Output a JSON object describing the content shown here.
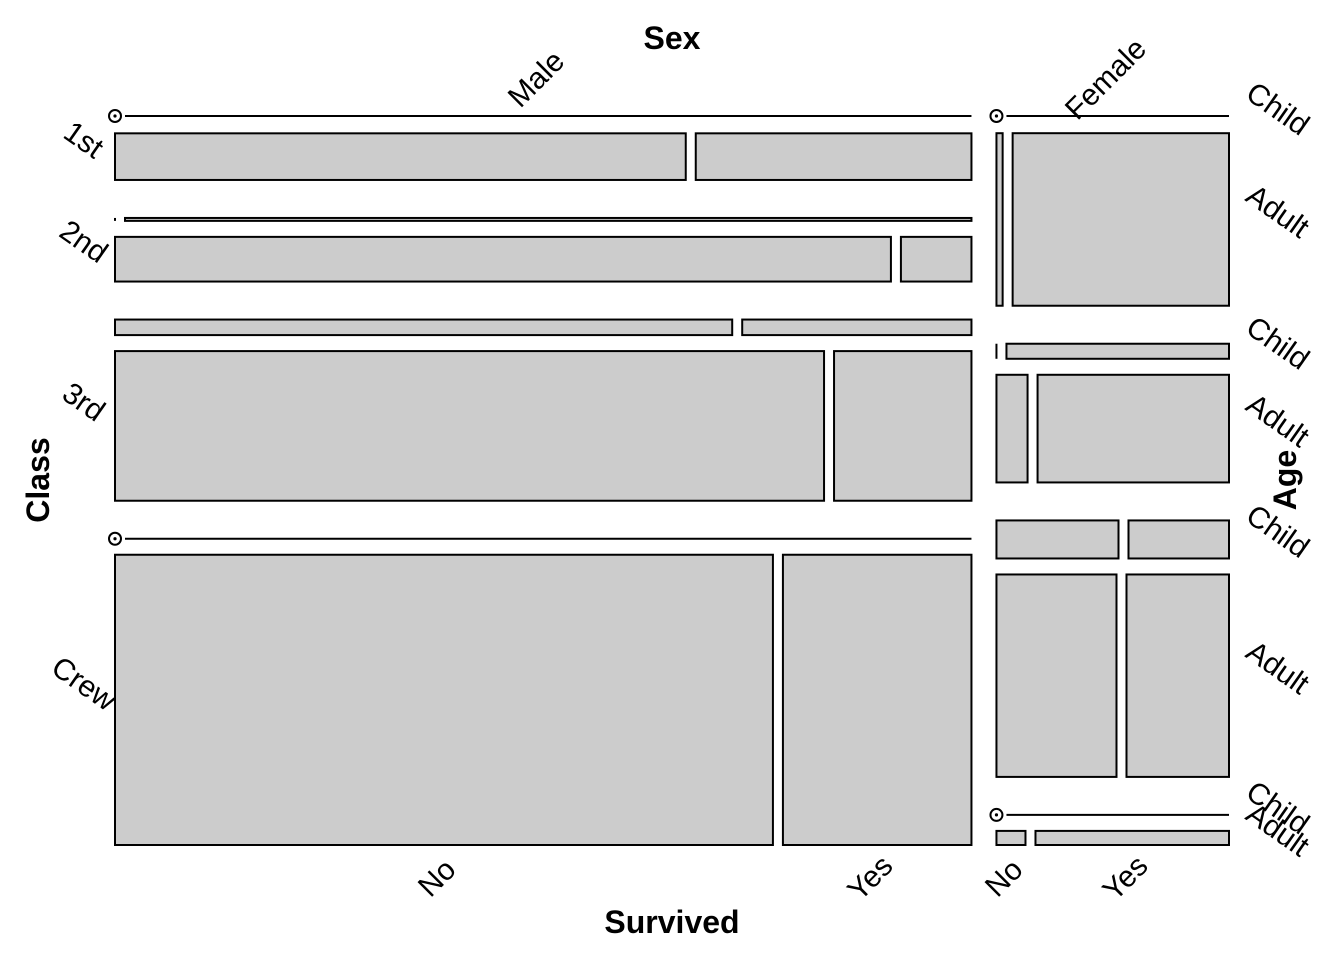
{
  "chart_data": {
    "type": "mosaic",
    "variables": {
      "sex": {
        "title": "Sex",
        "levels": [
          "Male",
          "Female"
        ]
      },
      "class": {
        "title": "Class",
        "levels": [
          "1st",
          "2nd",
          "3rd",
          "Crew"
        ]
      },
      "age": {
        "title": "Age",
        "levels": [
          "Child",
          "Adult"
        ]
      },
      "survived": {
        "title": "Survived",
        "levels": [
          "No",
          "Yes"
        ]
      }
    },
    "bottom_labels": [
      {
        "sex": "Male",
        "survived": "No"
      },
      {
        "sex": "Male",
        "survived": "Yes"
      },
      {
        "sex": "Female",
        "survived": "No"
      },
      {
        "sex": "Female",
        "survived": "Yes"
      }
    ],
    "counts": {
      "1st": {
        "Male": {
          "Child": {
            "No": 0,
            "Yes": 5
          },
          "Adult": {
            "No": 118,
            "Yes": 57
          }
        },
        "Female": {
          "Child": {
            "No": 0,
            "Yes": 1
          },
          "Adult": {
            "No": 4,
            "Yes": 140
          }
        }
      },
      "2nd": {
        "Male": {
          "Child": {
            "No": 0,
            "Yes": 11
          },
          "Adult": {
            "No": 154,
            "Yes": 14
          }
        },
        "Female": {
          "Child": {
            "No": 0,
            "Yes": 13
          },
          "Adult": {
            "No": 13,
            "Yes": 80
          }
        }
      },
      "3rd": {
        "Male": {
          "Child": {
            "No": 35,
            "Yes": 13
          },
          "Adult": {
            "No": 387,
            "Yes": 75
          }
        },
        "Female": {
          "Child": {
            "No": 17,
            "Yes": 14
          },
          "Adult": {
            "No": 89,
            "Yes": 76
          }
        }
      },
      "Crew": {
        "Male": {
          "Child": {
            "No": 0,
            "Yes": 0
          },
          "Adult": {
            "No": 670,
            "Yes": 192
          }
        },
        "Female": {
          "Child": {
            "No": 0,
            "Yes": 0
          },
          "Adult": {
            "No": 3,
            "Yes": 20
          }
        }
      }
    }
  }
}
